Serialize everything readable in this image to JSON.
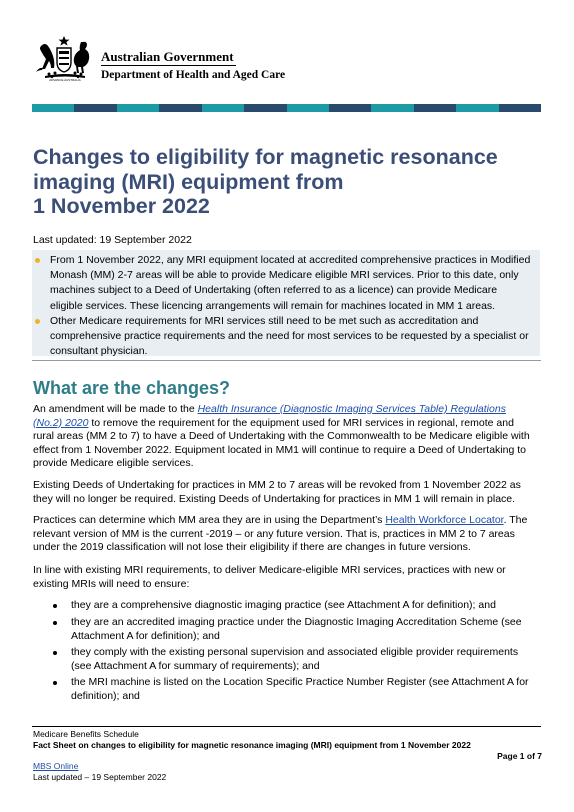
{
  "header": {
    "gov_name": "Australian Government",
    "dept_name": "Department of Health and Aged Care",
    "stripe_colors": [
      "#1c9aa5",
      "#2a4a6d",
      "#1c9aa5",
      "#2a4a6d",
      "#1c9aa5",
      "#2a4a6d",
      "#1c9aa5",
      "#2a4a6d",
      "#1c9aa5",
      "#2a4a6d",
      "#1c9aa5",
      "#2a4a6d"
    ]
  },
  "title_lines": [
    "Changes to eligibility for magnetic resonance",
    "imaging (MRI) equipment from",
    "1 November 2022"
  ],
  "last_updated": "Last updated: 19 September 2022",
  "summary": {
    "bullet_color": "#f0b323",
    "items": [
      {
        "lines": [
          "From 1 November 2022, any MRI equipment located at accredited comprehensive practices in Modified",
          "Monash (MM) 2-7 areas will be able to provide Medicare eligible MRI services. Prior to this date, only",
          "machines subject to a Deed of Undertaking (often referred to as a licence) can provide Medicare",
          "eligible services. These licencing arrangements will remain for machines located in MM 1 areas."
        ]
      },
      {
        "lines": [
          "Other Medicare requirements for MRI services still need to be met such as accreditation and",
          "comprehensive practice requirements and the need for most services to be requested by a specialist or",
          "consultant physician."
        ]
      }
    ]
  },
  "section_heading": "What are the changes?",
  "para1": {
    "l1_pre": "An amendment will be made to the ",
    "l1_link": "Health Insurance (Diagnostic Imaging Services Table) Regulations",
    "l2_link": "(No.2) 2020",
    "l2_post": " to remove the requirement for the equipment used for MRI services in regional, remote and",
    "l3": "rural areas (MM 2 to 7) to have a Deed of Undertaking with the Commonwealth to be Medicare eligible with",
    "l4": "effect from 1 November 2022. Equipment located in MM1 will continue to require a Deed of Undertaking to",
    "l5": "provide Medicare eligible services."
  },
  "para2": {
    "lines": [
      "Existing Deeds of Undertaking for practices in MM 2 to 7 areas will be revoked from 1 November 2022 as",
      "they will no longer be required. Existing Deeds of Undertaking for practices in MM 1 will remain in place."
    ]
  },
  "para3": {
    "l1_pre": "Practices can determine which MM area they are in using the Department’s ",
    "l1_link": "Health Workforce Locator",
    "l1_post": ". The",
    "l2": "relevant version of MM is the current -2019 – or any future version. That is, practices in MM 2 to 7 areas",
    "l3": "under the 2019 classification will not lose their eligibility if there are changes in future versions."
  },
  "para4": {
    "lines": [
      "In line with existing MRI requirements, to deliver Medicare-eligible MRI services, practices with new or",
      "existing MRIs will need to ensure:"
    ]
  },
  "list": [
    {
      "lines": [
        "they are a comprehensive diagnostic imaging practice (see Attachment A for definition); and"
      ]
    },
    {
      "lines": [
        "they are an accredited imaging practice under the Diagnostic Imaging Accreditation Scheme (see",
        "Attachment A for definition); and"
      ]
    },
    {
      "lines": [
        "they comply with the existing personal supervision and associated eligible provider requirements",
        "(see Attachment A for summary of requirements); and"
      ]
    },
    {
      "lines": [
        "the MRI machine is listed on the Location Specific Practice Number Register (see Attachment A for",
        "definition); and"
      ]
    }
  ],
  "footer": {
    "schedule": "Medicare Benefits Schedule",
    "factsheet": "Fact Sheet on changes to eligibility for magnetic resonance imaging (MRI) equipment from 1 November 2022",
    "page": "Page 1 of 7",
    "mbs_link": "MBS Online",
    "updated": "Last updated – 19 September 2022"
  }
}
